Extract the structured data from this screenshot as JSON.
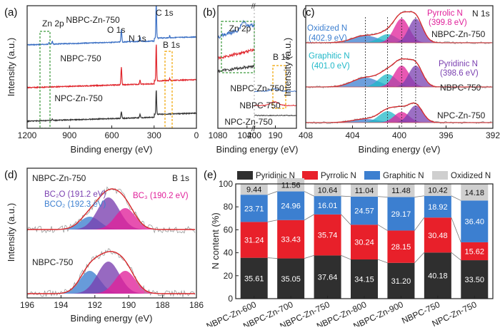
{
  "panels": {
    "a": {
      "label": "(a)"
    },
    "b": {
      "label": "(b)"
    },
    "c": {
      "label": "(c)"
    },
    "d": {
      "label": "(d)"
    },
    "e": {
      "label": "(e)"
    }
  },
  "colors": {
    "blue": "#3a6fc4",
    "red": "#e0242b",
    "black": "#333333",
    "green_box": "#3c9a3c",
    "orange_box": "#f0a400",
    "pyridinic": "#2f2f2f",
    "pyrrolic": "#e8202a",
    "graphitic": "#3c7fd0",
    "oxidized": "#cfcfcf"
  },
  "chart_data": [
    {
      "panel": "a",
      "type": "line",
      "xlabel": "Binding energy (eV)",
      "ylabel": "Intensity (a.u.)",
      "xlim": [
        1200,
        0
      ],
      "xticks": [
        "1200",
        "900",
        "600",
        "300",
        "0"
      ],
      "series": [
        {
          "name": "NBPC-Zn-750",
          "color": "#3a6fc4"
        },
        {
          "name": "NBPC-750",
          "color": "#e0242b"
        },
        {
          "name": "NPC-Zn-750",
          "color": "#333333"
        }
      ],
      "annotations": [
        "Zn 2p",
        "O 1s",
        "C 1s",
        "N 1s",
        "B 1s"
      ]
    },
    {
      "panel": "b",
      "type": "line",
      "xlabel": "Binding energy (eV)",
      "ylabel": "",
      "xticks": [
        "1080",
        "1040",
        "200",
        "190"
      ],
      "series": [
        {
          "name": "NBPC-Zn-750",
          "color": "#3a6fc4"
        },
        {
          "name": "NBPC-750",
          "color": "#e0242b"
        },
        {
          "name": "NPC-Zn-750",
          "color": "#333333"
        }
      ],
      "annotations": [
        "Zn 2p",
        "B 1s"
      ]
    },
    {
      "panel": "c",
      "type": "line",
      "title": "N 1s",
      "xlabel": "Binding energy (eV)",
      "ylabel": "Intensity (a.u.)",
      "xlim": [
        408,
        392
      ],
      "xticks": [
        "408",
        "404",
        "400",
        "396",
        "392"
      ],
      "series": [
        {
          "name": "NBPC-Zn-750"
        },
        {
          "name": "NBPC-750"
        },
        {
          "name": "NPC-Zn-750"
        }
      ],
      "peaks": [
        {
          "name": "Oxidized N",
          "position": "(402.9 eV)",
          "ev": 402.9,
          "color": "#3c7fd0"
        },
        {
          "name": "Graphitic N",
          "position": "(401.0 eV)",
          "ev": 401.0,
          "color": "#20b8c8"
        },
        {
          "name": "Pyrrolic N",
          "position": "(399.8 eV)",
          "ev": 399.8,
          "color": "#e0209a"
        },
        {
          "name": "Pyridinic N",
          "position": "(398.6 eV)",
          "ev": 398.6,
          "color": "#7a3fb0"
        }
      ]
    },
    {
      "panel": "d",
      "type": "line",
      "title": "B 1s",
      "xlabel": "Binding energy (eV)",
      "ylabel": "Intensity (a.u.)",
      "xlim": [
        196,
        186
      ],
      "xticks": [
        "196",
        "194",
        "192",
        "190",
        "188",
        "186"
      ],
      "series": [
        {
          "name": "NBPC-Zn-750"
        },
        {
          "name": "NBPC-750"
        }
      ],
      "peaks": [
        {
          "name": "BC₂O",
          "position": "(191.2 eV)",
          "ev": 191.2,
          "color": "#7a3fb0"
        },
        {
          "name": "BCO₂",
          "position": "(192.3 eV)",
          "ev": 192.3,
          "color": "#3c7fd0"
        },
        {
          "name": "BC₃",
          "position": "(190.2 eV)",
          "ev": 190.2,
          "color": "#e0209a"
        }
      ]
    },
    {
      "panel": "e",
      "type": "bar",
      "stacked": true,
      "ylabel": "N content (%)",
      "ylim": [
        0,
        100
      ],
      "yticks": [
        "0",
        "20",
        "40",
        "60",
        "80",
        "100"
      ],
      "legend_position": "top",
      "categories": [
        "NBPC-Zn-600",
        "NBPC-Zn-700",
        "NBPC-Zn-750",
        "NBPC-Zn-800",
        "NBPC-Zn-900",
        "NBPC-750",
        "NPC-Zn-750"
      ],
      "series": [
        {
          "name": "Pyridinic N",
          "color": "#2f2f2f",
          "values": [
            35.61,
            35.05,
            37.64,
            34.15,
            31.2,
            40.18,
            33.5
          ],
          "labels": [
            "35.61",
            "35.05",
            "37.64",
            "34.15",
            "31.20",
            "40.18",
            "33.50"
          ]
        },
        {
          "name": "Pyrrolic N",
          "color": "#e8202a",
          "values": [
            31.24,
            33.43,
            35.74,
            30.24,
            28.15,
            30.48,
            15.62
          ],
          "labels": [
            "31.24",
            "33.43",
            "35.74",
            "30.24",
            "28.15",
            "30.48",
            "15.62"
          ]
        },
        {
          "name": "Graphitic N",
          "color": "#3c7fd0",
          "values": [
            23.71,
            24.96,
            16.01,
            24.57,
            29.17,
            18.92,
            36.4
          ],
          "labels": [
            "23.71",
            "24.96",
            "16.01",
            "24.57",
            "29.17",
            "18.92",
            "36.40"
          ]
        },
        {
          "name": "Oxidized N",
          "color": "#cfcfcf",
          "values": [
            9.44,
            11.56,
            10.64,
            11.04,
            11.48,
            10.42,
            14.18
          ],
          "labels": [
            "9.44",
            "11.56",
            "10.64",
            "11.04",
            "11.48",
            "10.42",
            "14.18"
          ]
        }
      ]
    }
  ]
}
